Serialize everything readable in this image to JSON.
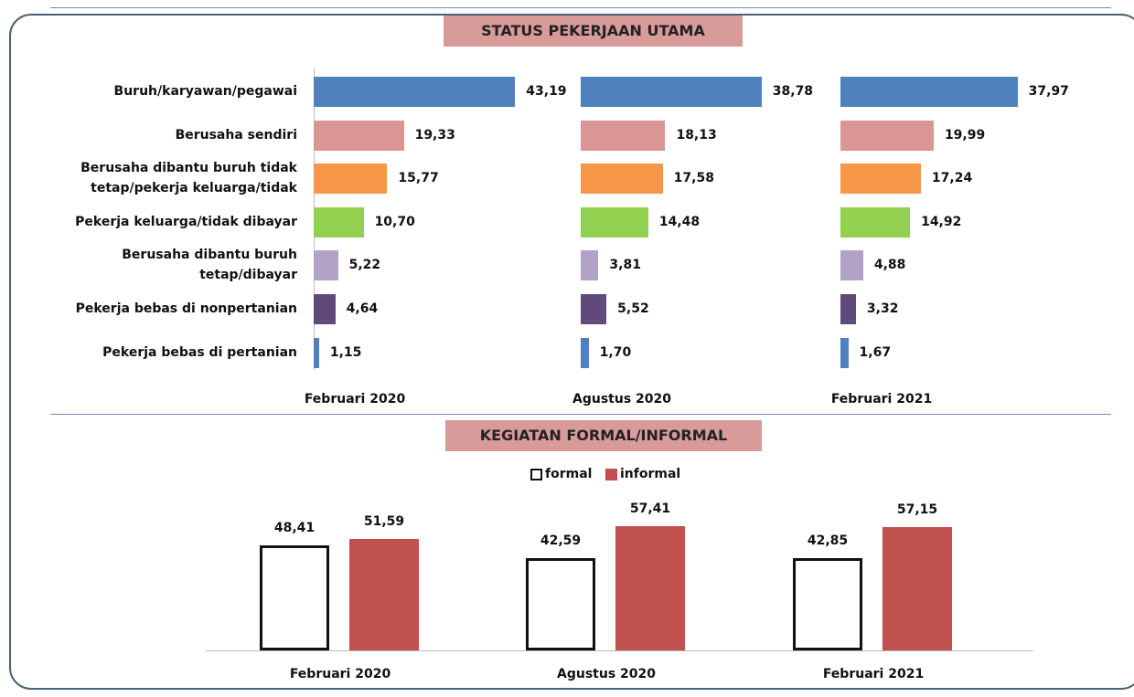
{
  "chart_data": [
    {
      "type": "hbar",
      "title": "STATUS PEKERJAAN UTAMA",
      "categories": [
        "Buruh/karyawan/pegawai",
        "Berusaha sendiri",
        "Berusaha dibantu buruh tidak\ntetap/pekerja keluarga/tidak",
        "Pekerja keluarga/tidak dibayar",
        "Berusaha dibantu buruh\ntetap/dibayar",
        "Pekerja bebas di nonpertanian",
        "Pekerja bebas di pertanian"
      ],
      "colors": [
        "#4f81bd",
        "#d99694",
        "#f79646",
        "#92d050",
        "#b3a2c7",
        "#604a7b",
        "#4f81bd"
      ],
      "xlim": [
        0,
        50
      ],
      "series": [
        {
          "name": "Februari 2020",
          "values": [
            43.19,
            19.33,
            15.77,
            10.7,
            5.22,
            4.64,
            1.15
          ],
          "value_labels": [
            "43,19",
            "19,33",
            "15,77",
            "10,70",
            "5,22",
            "4,64",
            "1,15"
          ]
        },
        {
          "name": "Agustus 2020",
          "values": [
            38.78,
            18.13,
            17.58,
            14.48,
            3.81,
            5.52,
            1.7
          ],
          "value_labels": [
            "38,78",
            "18,13",
            "17,58",
            "14,48",
            "3,81",
            "5,52",
            "1,70"
          ]
        },
        {
          "name": "Februari 2021",
          "values": [
            37.97,
            19.99,
            17.24,
            14.92,
            4.88,
            3.32,
            1.67
          ],
          "value_labels": [
            "37,97",
            "19,99",
            "17,24",
            "14,92",
            "4,88",
            "3,32",
            "1,67"
          ]
        }
      ]
    },
    {
      "type": "bar",
      "title": "KEGIATAN FORMAL/INFORMAL",
      "categories": [
        "Februari 2020",
        "Agustus 2020",
        "Februari 2021"
      ],
      "ylim": [
        0,
        60
      ],
      "series": [
        {
          "name": "formal",
          "color": "#ffffff",
          "values": [
            48.41,
            42.59,
            42.85
          ],
          "value_labels": [
            "48,41",
            "42,59",
            "42,85"
          ]
        },
        {
          "name": "informal",
          "color": "#c0504d",
          "values": [
            51.59,
            57.41,
            57.15
          ],
          "value_labels": [
            "51,59",
            "57,41",
            "57,15"
          ]
        }
      ]
    }
  ]
}
